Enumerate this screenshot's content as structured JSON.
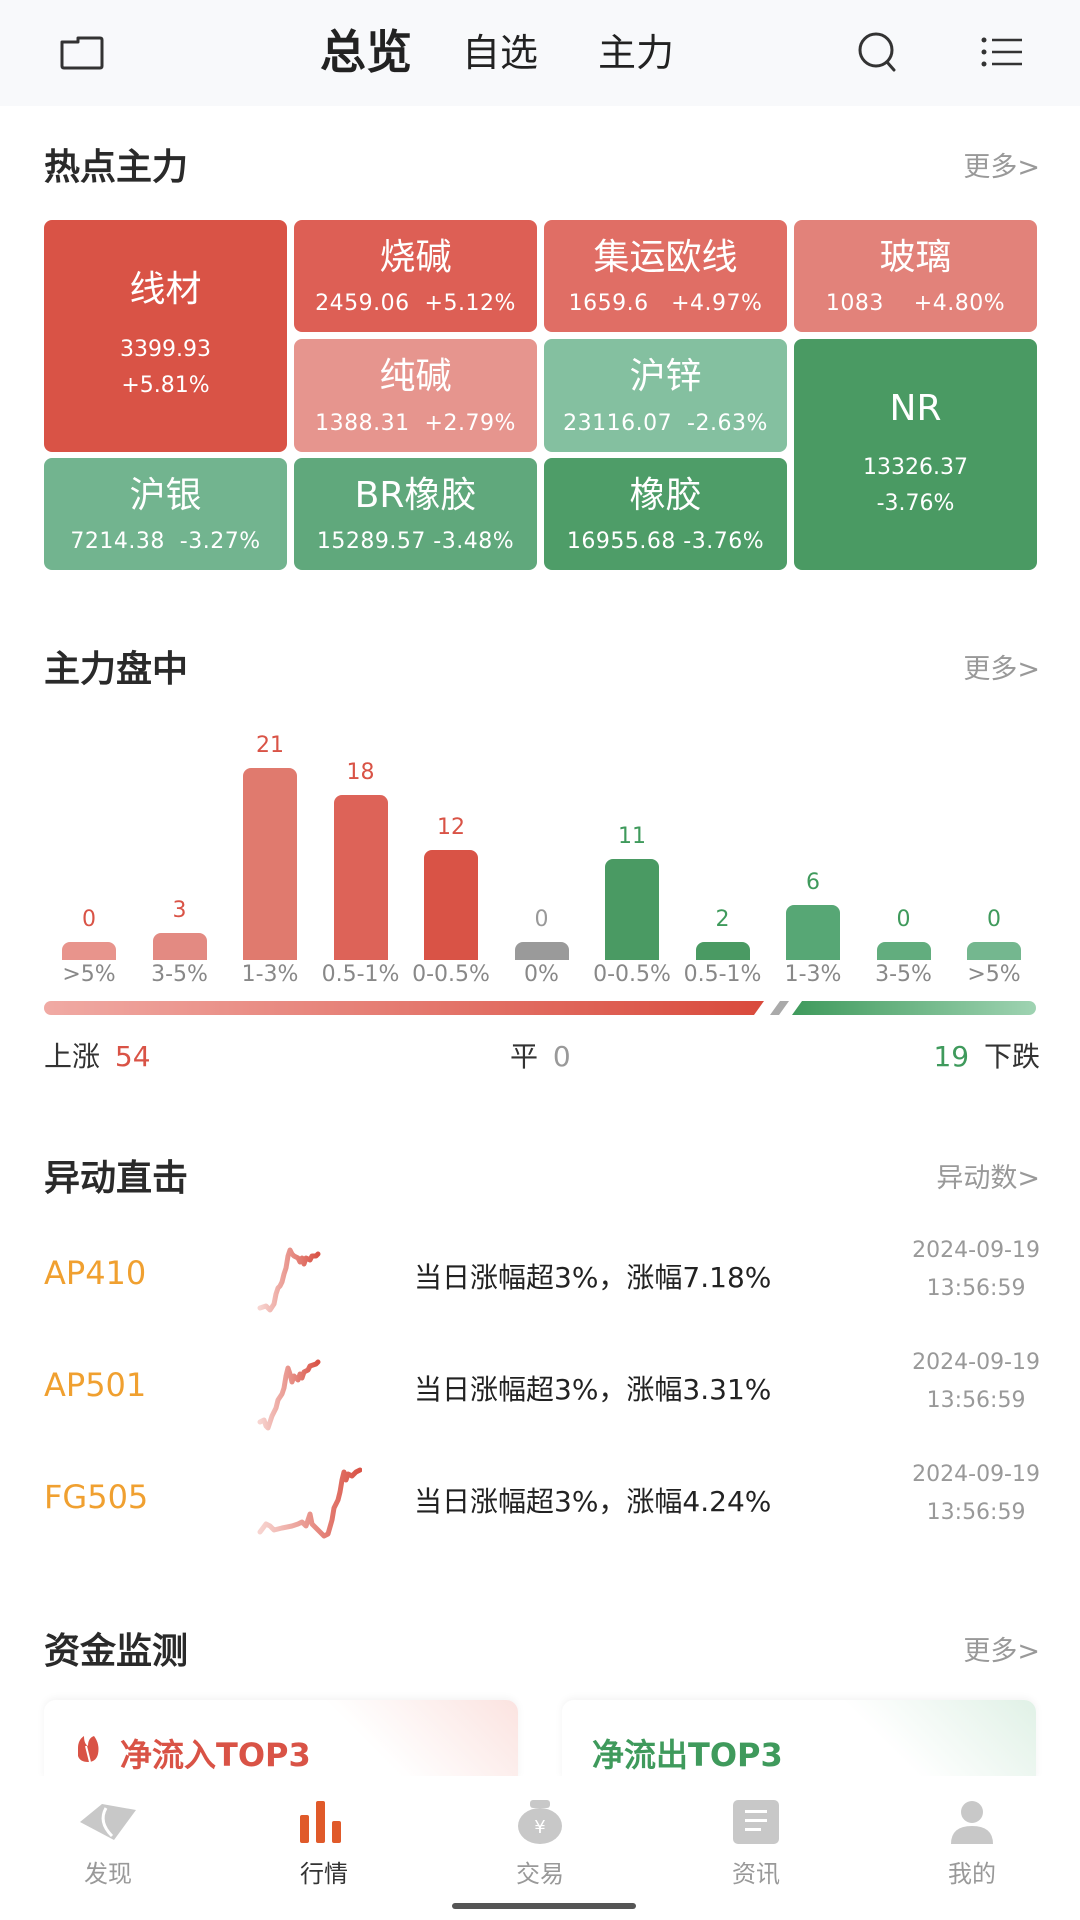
{
  "topbar": {
    "tabs": [
      {
        "label": "总览",
        "active": true
      },
      {
        "label": "自选",
        "active": false
      },
      {
        "label": "主力",
        "active": false
      }
    ],
    "icons": [
      "folder-icon",
      "search-icon",
      "menu-list-icon"
    ]
  },
  "hot": {
    "title": "热点主力",
    "more": "更多>",
    "tiles": [
      {
        "name": "线材",
        "price": "3399.93",
        "change": "+5.81%",
        "color": "#d95346"
      },
      {
        "name": "烧碱",
        "price": "2459.06",
        "change": "+5.12%",
        "vals": "2459.06  +5.12%",
        "color": "#dd5f55"
      },
      {
        "name": "集运欧线",
        "price": "1659.6",
        "change": "+4.97%",
        "vals": "1659.6   +4.97%",
        "color": "#e06e65"
      },
      {
        "name": "玻璃",
        "price": "1083",
        "change": "+4.80%",
        "vals": "1083    +4.80%",
        "color": "#e2827a"
      },
      {
        "name": "纯碱",
        "price": "1388.31",
        "change": "+2.79%",
        "vals": "1388.31  +2.79%",
        "color": "#e6958e"
      },
      {
        "name": "沪锌",
        "price": "23116.07",
        "change": "-2.63%",
        "vals": "23116.07  -2.63%",
        "color": "#84c0a0"
      },
      {
        "name": "NR",
        "price": "13326.37",
        "change": "-3.76%",
        "color": "#4a9a63"
      },
      {
        "name": "沪银",
        "price": "7214.38",
        "change": "-3.27%",
        "vals": "7214.38  -3.27%",
        "color": "#72b48f"
      },
      {
        "name": "BR橡胶",
        "price": "15289.57",
        "change": "-3.48%",
        "vals": "15289.57 -3.48%",
        "color": "#60a87c"
      },
      {
        "name": "橡胶",
        "price": "16955.68",
        "change": "-3.76%",
        "vals": "16955.68 -3.76%",
        "color": "#4e9d68"
      }
    ]
  },
  "intraday": {
    "title": "主力盘中",
    "more": "更多>",
    "summary": {
      "up_label": "上涨",
      "up_count": "54",
      "flat_label": "平",
      "flat_count": "0",
      "down_count": "19",
      "down_label": "下跌"
    }
  },
  "chart_data": {
    "type": "bar",
    "title": "主力盘中",
    "categories": [
      ">5%",
      "3-5%",
      "1-3%",
      "0.5-1%",
      "0-0.5%",
      "0%",
      "0-0.5%",
      "0.5-1%",
      "1-3%",
      "3-5%",
      ">5%"
    ],
    "values": [
      0,
      3,
      21,
      18,
      12,
      0,
      11,
      2,
      6,
      0,
      0
    ],
    "series_groups": [
      "up",
      "up",
      "up",
      "up",
      "up",
      "flat",
      "down",
      "down",
      "down",
      "down",
      "down"
    ],
    "colors": [
      "#e8948c",
      "#e38a82",
      "#e07a6e",
      "#dd6358",
      "#d95346",
      "#9a9a9a",
      "#4a9a63",
      "#4a9a63",
      "#57a775",
      "#62ad7e",
      "#74b78f"
    ],
    "label_colors": [
      "#d95346",
      "#d95346",
      "#d95346",
      "#d95346",
      "#d95346",
      "#999999",
      "#3f9a5c",
      "#3f9a5c",
      "#3f9a5c",
      "#3f9a5c",
      "#3f9a5c"
    ],
    "xlabel": "",
    "ylabel": "",
    "totals": {
      "up": 54,
      "flat": 0,
      "down": 19
    }
  },
  "alerts": {
    "title": "异动直击",
    "more": "异动数>",
    "items": [
      {
        "code": "AP410",
        "message": "当日涨幅超3%，涨幅7.18%",
        "date": "2024-09-19",
        "time": "13:56:59"
      },
      {
        "code": "AP501",
        "message": "当日涨幅超3%，涨幅3.31%",
        "date": "2024-09-19",
        "time": "13:56:59"
      },
      {
        "code": "FG505",
        "message": "当日涨幅超3%，涨幅4.24%",
        "date": "2024-09-19",
        "time": "13:56:59"
      }
    ]
  },
  "funds": {
    "title": "资金监测",
    "more": "更多>",
    "inflow_title": "净流入TOP3",
    "outflow_title": "净流出TOP3",
    "inflow_color": "#d95346",
    "outflow_color": "#3f9a5c"
  },
  "bottom_nav": {
    "items": [
      {
        "label": "发现",
        "icon": "discover-icon",
        "active": false
      },
      {
        "label": "行情",
        "icon": "market-bars-icon",
        "active": true
      },
      {
        "label": "交易",
        "icon": "money-bag-icon",
        "active": false
      },
      {
        "label": "资讯",
        "icon": "news-doc-icon",
        "active": false
      },
      {
        "label": "我的",
        "icon": "user-icon",
        "active": false
      }
    ],
    "accent": "#e05a2a"
  }
}
